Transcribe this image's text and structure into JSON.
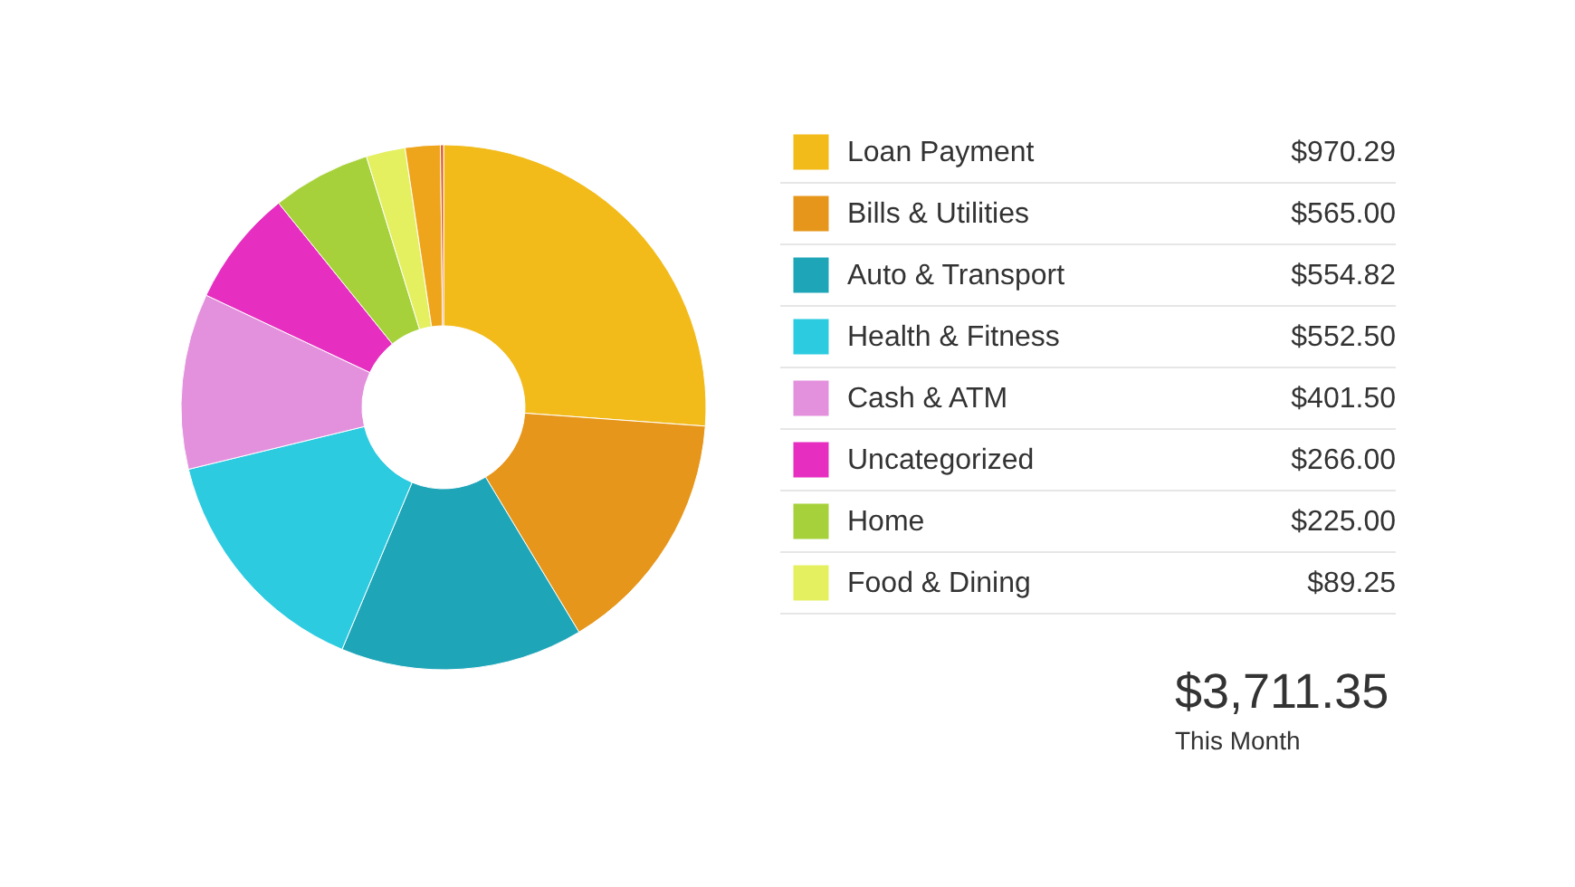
{
  "chart_data": {
    "type": "donut",
    "categories": [
      "Loan Payment",
      "Bills & Utilities",
      "Auto & Transport",
      "Health & Fitness",
      "Cash & ATM",
      "Uncategorized",
      "Home",
      "Food & Dining",
      null,
      null
    ],
    "values": [
      970.29,
      565.0,
      554.82,
      552.5,
      401.5,
      266.0,
      225.0,
      89.25,
      80,
      7
    ],
    "colors": [
      "#f2bb1a",
      "#e6961a",
      "#1fa5b8",
      "#2ccbe0",
      "#e391dd",
      "#e62fc0",
      "#a6d13a",
      "#e4f060",
      "#eea51c",
      "#e0581c"
    ],
    "value_labels": [
      "$970.29",
      "$565.00",
      "$554.82",
      "$552.50",
      "$401.50",
      "$266.00",
      "$225.00",
      "$89.25",
      null,
      null
    ],
    "legend": "right",
    "annotations": [
      "$3,711.35",
      "This Month"
    ]
  }
}
